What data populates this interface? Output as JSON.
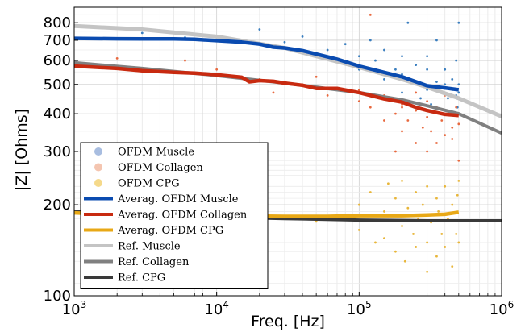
{
  "chart_data": {
    "type": "scatter",
    "title": "",
    "xlabel": "Freq. [Hz]",
    "ylabel": "|Z| [Ohms]",
    "xscale": "log",
    "yscale": "log",
    "xlim": [
      1000,
      1000000
    ],
    "ylim": [
      100,
      900
    ],
    "grid": true,
    "legend_position": "bottom-left",
    "x_ticks": [
      {
        "value": 1000,
        "base": "10",
        "exp": "3"
      },
      {
        "value": 10000,
        "base": "10",
        "exp": "4"
      },
      {
        "value": 100000,
        "base": "10",
        "exp": "5"
      },
      {
        "value": 1000000,
        "base": "10",
        "exp": "6"
      }
    ],
    "y_ticks": [
      {
        "value": 100,
        "label": "100"
      },
      {
        "value": 200,
        "label": "200"
      },
      {
        "value": 300,
        "label": "300"
      },
      {
        "value": 400,
        "label": "400"
      },
      {
        "value": 500,
        "label": "500"
      },
      {
        "value": 600,
        "label": "600"
      },
      {
        "value": 700,
        "label": "700"
      },
      {
        "value": 800,
        "label": "800"
      }
    ],
    "scatter_series": [
      {
        "name": "OFDM Muscle",
        "color": "#3a7ebf",
        "points": [
          [
            3000,
            740
          ],
          [
            6000,
            715
          ],
          [
            10000,
            705
          ],
          [
            20000,
            760
          ],
          [
            30000,
            690
          ],
          [
            40000,
            720
          ],
          [
            60000,
            650
          ],
          [
            80000,
            680
          ],
          [
            100000,
            620
          ],
          [
            100000,
            560
          ],
          [
            120000,
            700
          ],
          [
            130000,
            600
          ],
          [
            150000,
            520
          ],
          [
            150000,
            650
          ],
          [
            180000,
            560
          ],
          [
            200000,
            620
          ],
          [
            200000,
            540
          ],
          [
            200000,
            470
          ],
          [
            220000,
            800
          ],
          [
            250000,
            580
          ],
          [
            250000,
            500
          ],
          [
            270000,
            450
          ],
          [
            300000,
            560
          ],
          [
            300000,
            620
          ],
          [
            300000,
            480
          ],
          [
            320000,
            430
          ],
          [
            350000,
            700
          ],
          [
            350000,
            510
          ],
          [
            380000,
            470
          ],
          [
            400000,
            560
          ],
          [
            400000,
            500
          ],
          [
            420000,
            450
          ],
          [
            450000,
            520
          ],
          [
            450000,
            480
          ],
          [
            480000,
            600
          ],
          [
            480000,
            460
          ],
          [
            490000,
            420
          ],
          [
            500000,
            800
          ],
          [
            500000,
            500
          ],
          [
            500000,
            470
          ]
        ]
      },
      {
        "name": "OFDM Collagen",
        "color": "#e8693f",
        "points": [
          [
            2000,
            610
          ],
          [
            3000,
            560
          ],
          [
            6000,
            600
          ],
          [
            10000,
            560
          ],
          [
            20000,
            520
          ],
          [
            25000,
            470
          ],
          [
            40000,
            500
          ],
          [
            50000,
            530
          ],
          [
            60000,
            460
          ],
          [
            80000,
            480
          ],
          [
            100000,
            440
          ],
          [
            100000,
            480
          ],
          [
            120000,
            420
          ],
          [
            120000,
            850
          ],
          [
            150000,
            380
          ],
          [
            150000,
            460
          ],
          [
            180000,
            400
          ],
          [
            180000,
            300
          ],
          [
            200000,
            350
          ],
          [
            200000,
            430
          ],
          [
            200000,
            420
          ],
          [
            220000,
            380
          ],
          [
            250000,
            320
          ],
          [
            250000,
            470
          ],
          [
            250000,
            410
          ],
          [
            280000,
            360
          ],
          [
            300000,
            300
          ],
          [
            300000,
            440
          ],
          [
            300000,
            390
          ],
          [
            320000,
            350
          ],
          [
            350000,
            320
          ],
          [
            350000,
            420
          ],
          [
            380000,
            380
          ],
          [
            400000,
            340
          ],
          [
            400000,
            460
          ],
          [
            420000,
            400
          ],
          [
            450000,
            360
          ],
          [
            450000,
            330
          ],
          [
            480000,
            420
          ],
          [
            500000,
            370
          ],
          [
            500000,
            280
          ]
        ]
      },
      {
        "name": "OFDM CPG",
        "color": "#e8b63a",
        "points": [
          [
            2000,
            178
          ],
          [
            5000,
            174
          ],
          [
            10000,
            180
          ],
          [
            20000,
            172
          ],
          [
            50000,
            176
          ],
          [
            80000,
            185
          ],
          [
            100000,
            165
          ],
          [
            100000,
            200
          ],
          [
            120000,
            220
          ],
          [
            130000,
            150
          ],
          [
            150000,
            190
          ],
          [
            150000,
            155
          ],
          [
            160000,
            235
          ],
          [
            180000,
            140
          ],
          [
            180000,
            210
          ],
          [
            200000,
            170
          ],
          [
            200000,
            240
          ],
          [
            210000,
            130
          ],
          [
            220000,
            195
          ],
          [
            240000,
            160
          ],
          [
            250000,
            220
          ],
          [
            250000,
            145
          ],
          [
            260000,
            180
          ],
          [
            280000,
            200
          ],
          [
            300000,
            150
          ],
          [
            300000,
            230
          ],
          [
            300000,
            120
          ],
          [
            320000,
            175
          ],
          [
            350000,
            210
          ],
          [
            350000,
            135
          ],
          [
            360000,
            190
          ],
          [
            380000,
            160
          ],
          [
            400000,
            230
          ],
          [
            400000,
            145
          ],
          [
            420000,
            180
          ],
          [
            450000,
            125
          ],
          [
            450000,
            200
          ],
          [
            480000,
            160
          ],
          [
            490000,
            215
          ],
          [
            500000,
            240
          ],
          [
            500000,
            150
          ]
        ]
      }
    ],
    "line_series": [
      {
        "name": "Averag. OFDM Muscle",
        "color": "#0a4bb0",
        "width": 4.5,
        "x": [
          1000,
          2000,
          3000,
          5000,
          7000,
          10000,
          15000,
          20000,
          25000,
          30000,
          40000,
          50000,
          70000,
          100000,
          150000,
          200000,
          300000,
          400000,
          500000
        ],
        "y": [
          710,
          708,
          707,
          707,
          705,
          698,
          690,
          680,
          664,
          660,
          647,
          630,
          606,
          575,
          548,
          530,
          495,
          487,
          480
        ]
      },
      {
        "name": "Averag. OFDM Collagen",
        "color": "#c82a10",
        "width": 4.5,
        "x": [
          1000,
          2000,
          3000,
          5000,
          7000,
          10000,
          15000,
          17000,
          20000,
          25000,
          30000,
          40000,
          50000,
          70000,
          100000,
          150000,
          200000,
          250000,
          300000,
          400000,
          500000
        ],
        "y": [
          575,
          565,
          555,
          548,
          545,
          538,
          528,
          510,
          515,
          512,
          505,
          497,
          485,
          485,
          470,
          448,
          437,
          420,
          410,
          398,
          395
        ]
      },
      {
        "name": "Averag. OFDM CPG",
        "color": "#e8a816",
        "width": 4.5,
        "x": [
          1000,
          3000,
          10000,
          30000,
          60000,
          100000,
          200000,
          300000,
          400000,
          500000
        ],
        "y": [
          188,
          184,
          184,
          183,
          183,
          184,
          184,
          185,
          186,
          189
        ]
      },
      {
        "name": "Ref. Muscle",
        "color": "#c4c4c4",
        "width": 5,
        "x": [
          1000,
          3000,
          10000,
          30000,
          100000,
          200000,
          300000,
          500000,
          1000000
        ],
        "y": [
          780,
          760,
          720,
          660,
          570,
          520,
          490,
          450,
          392
        ]
      },
      {
        "name": "Ref. Collagen",
        "color": "#808080",
        "width": 4,
        "x": [
          1000,
          3000,
          10000,
          30000,
          100000,
          200000,
          300000,
          500000,
          1000000
        ],
        "y": [
          590,
          565,
          535,
          505,
          470,
          445,
          425,
          400,
          345
        ]
      },
      {
        "name": "Ref. CPG",
        "color": "#3a3a3a",
        "width": 4,
        "x": [
          1000,
          3000,
          10000,
          30000,
          100000,
          300000,
          1000000
        ],
        "y": [
          190,
          186,
          182,
          180,
          178,
          177,
          177
        ]
      }
    ],
    "legend": [
      {
        "label": "OFDM Muscle",
        "kind": "marker",
        "color": "#a8bde0"
      },
      {
        "label": "OFDM Collagen",
        "kind": "marker",
        "color": "#f4c5b0"
      },
      {
        "label": "OFDM CPG",
        "kind": "marker",
        "color": "#f5d98a"
      },
      {
        "label": "Averag. OFDM Muscle",
        "kind": "line",
        "color": "#0a4bb0"
      },
      {
        "label": "Averag. OFDM Collagen",
        "kind": "line",
        "color": "#c82a10"
      },
      {
        "label": "Averag. OFDM CPG",
        "kind": "line",
        "color": "#e8a816"
      },
      {
        "label": "Ref. Muscle",
        "kind": "line",
        "color": "#c4c4c4"
      },
      {
        "label": "Ref. Collagen",
        "kind": "line",
        "color": "#808080"
      },
      {
        "label": "Ref. CPG",
        "kind": "line",
        "color": "#3a3a3a"
      }
    ]
  }
}
